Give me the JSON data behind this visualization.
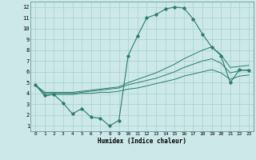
{
  "xlabel": "Humidex (Indice chaleur)",
  "x": [
    0,
    1,
    2,
    3,
    4,
    5,
    6,
    7,
    8,
    9,
    10,
    11,
    12,
    13,
    14,
    15,
    16,
    17,
    18,
    19,
    20,
    21,
    22,
    23
  ],
  "line_spiky": [
    4.8,
    3.8,
    3.9,
    3.1,
    2.1,
    2.6,
    1.8,
    1.7,
    1.0,
    1.5,
    7.5,
    9.3,
    11.0,
    11.3,
    11.8,
    12.0,
    11.9,
    10.9,
    9.5,
    8.3,
    7.5,
    5.0,
    6.2,
    6.1
  ],
  "line_top": [
    4.8,
    4.1,
    4.1,
    4.1,
    4.1,
    4.2,
    4.3,
    4.4,
    4.5,
    4.6,
    5.0,
    5.3,
    5.6,
    5.9,
    6.3,
    6.7,
    7.2,
    7.6,
    8.0,
    8.3,
    7.6,
    6.4,
    6.5,
    6.6
  ],
  "line_mid": [
    4.8,
    4.0,
    4.0,
    4.0,
    4.0,
    4.1,
    4.2,
    4.3,
    4.4,
    4.5,
    4.8,
    5.0,
    5.2,
    5.4,
    5.7,
    6.0,
    6.4,
    6.7,
    7.0,
    7.2,
    6.8,
    5.9,
    6.1,
    6.2
  ],
  "line_bot": [
    4.8,
    3.8,
    3.9,
    3.9,
    3.9,
    4.0,
    4.0,
    4.1,
    4.1,
    4.2,
    4.4,
    4.5,
    4.7,
    4.9,
    5.1,
    5.3,
    5.6,
    5.8,
    6.0,
    6.2,
    5.9,
    5.3,
    5.6,
    5.7
  ],
  "line_color": "#2a7d6e",
  "bg_color": "#cce8e8",
  "grid_color": "#aacfcf",
  "ylim": [
    0.5,
    12.5
  ],
  "xlim": [
    -0.5,
    23.5
  ],
  "yticks": [
    1,
    2,
    3,
    4,
    5,
    6,
    7,
    8,
    9,
    10,
    11,
    12
  ],
  "xticks": [
    0,
    1,
    2,
    3,
    4,
    5,
    6,
    7,
    8,
    9,
    10,
    11,
    12,
    13,
    14,
    15,
    16,
    17,
    18,
    19,
    20,
    21,
    22,
    23
  ]
}
